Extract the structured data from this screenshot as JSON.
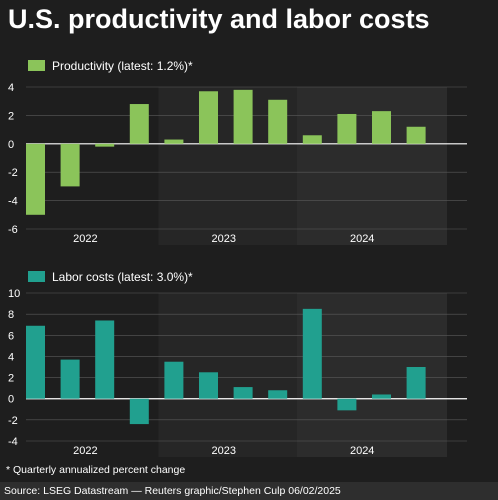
{
  "title": "U.S. productivity and labor costs",
  "footnote": "* Quarterly annualized percent change",
  "source": "Source: LSEG Datastream — Reuters graphic/Stephen Culp  06/02/2025",
  "colors": {
    "productivity": "#8bc45a",
    "labor_costs": "#21a08f",
    "background": "#1e1e1e",
    "band": "#2a2a2a",
    "grid": "#5a5a5a"
  },
  "chart_data": [
    {
      "type": "bar",
      "legend": "Productivity (latest: 1.2%)*",
      "categories": [
        "2022 Q1",
        "2022 Q2",
        "2022 Q3",
        "2022 Q4",
        "2023 Q1",
        "2023 Q2",
        "2023 Q3",
        "2023 Q4",
        "2024 Q1",
        "2024 Q2",
        "2024 Q3",
        "2024 Q4"
      ],
      "year_labels": [
        "2022",
        "2023",
        "2024"
      ],
      "values": [
        -5.0,
        -3.0,
        -0.2,
        2.8,
        0.3,
        3.7,
        3.8,
        3.1,
        0.6,
        2.1,
        2.3,
        1.2
      ],
      "ylim": [
        -6,
        4
      ],
      "yticks": [
        4,
        2,
        0,
        -2,
        -4,
        -6
      ],
      "grid": true,
      "legend_position": "top-left"
    },
    {
      "type": "bar",
      "legend": "Labor costs (latest: 3.0%)*",
      "categories": [
        "2022 Q1",
        "2022 Q2",
        "2022 Q3",
        "2022 Q4",
        "2023 Q1",
        "2023 Q2",
        "2023 Q3",
        "2023 Q4",
        "2024 Q1",
        "2024 Q2",
        "2024 Q3",
        "2024 Q4"
      ],
      "year_labels": [
        "2022",
        "2023",
        "2024"
      ],
      "values": [
        6.9,
        3.7,
        7.4,
        -2.4,
        3.5,
        2.5,
        1.1,
        0.8,
        8.5,
        -1.1,
        0.4,
        3.0
      ],
      "ylim": [
        -4,
        10
      ],
      "yticks": [
        10,
        8,
        6,
        4,
        2,
        0,
        -2,
        -4
      ],
      "grid": true,
      "legend_position": "top-left"
    }
  ]
}
